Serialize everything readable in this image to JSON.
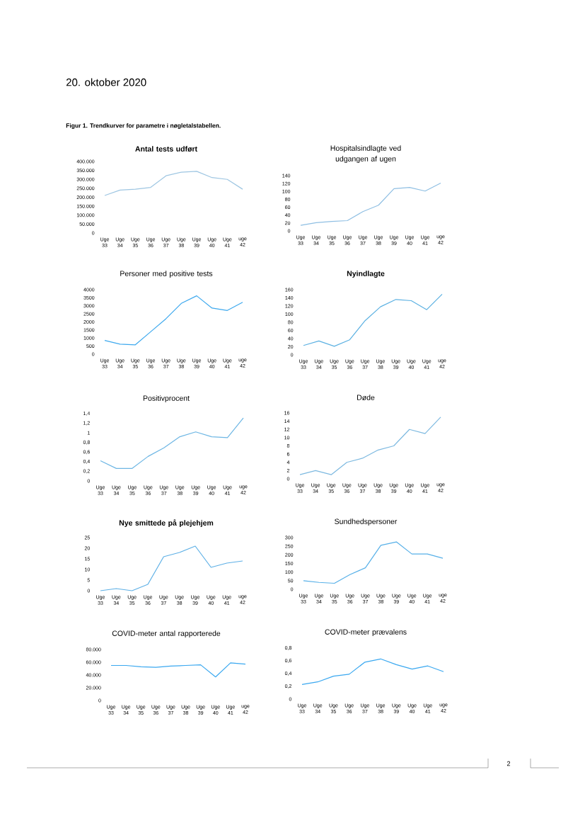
{
  "chart_data": [
    {
      "type": "other",
      "title": "Figur 1. Trendkurver for parametre i nøgletalstabellen.",
      "annotations": [
        "20. oktober 2020",
        "2"
      ]
    },
    {
      "type": "line",
      "title": "Antal tests udført",
      "categories": [
        "Uge 33",
        "Uge 34",
        "Uge 35",
        "Uge 36",
        "Uge 37",
        "Uge 38",
        "Uge 39",
        "Uge 40",
        "Uge 41",
        "uge 42"
      ],
      "values": [
        210000,
        240000,
        245000,
        255000,
        320000,
        340000,
        345000,
        310000,
        300000,
        245000
      ],
      "color": "#9ec6e2",
      "ylim": [
        0,
        400000
      ],
      "yticks": [
        0,
        {
          "value": 50000,
          "label": "50.000"
        },
        {
          "value": 100000,
          "label": "100.000"
        },
        {
          "value": 150000,
          "label": "150.000"
        },
        {
          "value": 200000,
          "label": "200.000"
        },
        {
          "value": 250000,
          "label": "250.000"
        },
        {
          "value": 300000,
          "label": "300.000"
        },
        {
          "value": 350000,
          "label": "350.000"
        },
        {
          "value": 400000,
          "label": "400.000"
        }
      ]
    },
    {
      "type": "line",
      "title": "Hospitalsindlagte ved udgangen af ugen",
      "categories": [
        "Uge 33",
        "Uge 34",
        "Uge 35",
        "Uge 36",
        "Uge 37",
        "Uge 38",
        "Uge 39",
        "Uge 40",
        "Uge 41",
        "uge 42"
      ],
      "values": [
        14,
        21,
        24,
        26,
        49,
        65,
        107,
        110,
        101,
        121
      ],
      "color": "#8fbfe3",
      "ylim": [
        0,
        140
      ],
      "yticks": [
        0,
        20,
        40,
        60,
        80,
        100,
        120,
        140
      ]
    },
    {
      "type": "line",
      "title": "Personer med positive tests",
      "categories": [
        "Uge 33",
        "Uge 34",
        "Uge 35",
        "Uge 36",
        "Uge 37",
        "Uge 38",
        "Uge 39",
        "Uge 40",
        "Uge 41",
        "uge 42"
      ],
      "values": [
        850,
        620,
        580,
        1390,
        2200,
        3150,
        3620,
        2860,
        2710,
        3220
      ],
      "color": "#3ea9ee",
      "ylim": [
        0,
        4000
      ],
      "yticks": [
        0,
        500,
        1000,
        1500,
        2000,
        2500,
        3000,
        3500,
        4000
      ]
    },
    {
      "type": "line",
      "title": "Nyindlagte",
      "categories": [
        "Uge 33",
        "Uge 34",
        "Uge 35",
        "Uge 36",
        "Uge 37",
        "Uge 38",
        "Uge 39",
        "Uge 40",
        "Uge 41",
        "uge 42"
      ],
      "values": [
        23,
        34,
        21,
        37,
        84,
        118,
        136,
        133,
        111,
        149
      ],
      "color": "#5cb1e2",
      "ylim": [
        0,
        160
      ],
      "yticks": [
        0,
        20,
        40,
        60,
        80,
        100,
        120,
        140,
        160
      ]
    },
    {
      "type": "line",
      "title": "Positivprocent",
      "categories": [
        "Uge 33",
        "Uge 34",
        "Uge 35",
        "Uge 36",
        "Uge 37",
        "Uge 38",
        "Uge 39",
        "Uge 40",
        "Uge 41",
        "uge 42"
      ],
      "values": [
        0.42,
        0.26,
        0.26,
        0.51,
        0.69,
        0.92,
        1.02,
        0.92,
        0.9,
        1.31
      ],
      "color": "#6db6e4",
      "ylim": [
        0,
        1.4
      ],
      "yticks": [
        0,
        {
          "value": 0.2,
          "label": "0,2"
        },
        {
          "value": 0.4,
          "label": "0,4"
        },
        {
          "value": 0.6,
          "label": "0,6"
        },
        {
          "value": 0.8,
          "label": "0,8"
        },
        1,
        {
          "value": 1.2,
          "label": "1,2"
        },
        {
          "value": 1.4,
          "label": "1,4"
        }
      ]
    },
    {
      "type": "line",
      "title": "Døde",
      "categories": [
        "Uge 33",
        "Uge 34",
        "Uge 35",
        "Uge 36",
        "Uge 37",
        "Uge 38",
        "Uge 39",
        "Uge 40",
        "Uge 41",
        "uge 42"
      ],
      "values": [
        1,
        2,
        1,
        4,
        5,
        7,
        8,
        12,
        11,
        15
      ],
      "color": "#7db9e0",
      "ylim": [
        0,
        16
      ],
      "yticks": [
        0,
        2,
        4,
        6,
        8,
        10,
        12,
        14,
        16
      ]
    },
    {
      "type": "line",
      "title": "Nye smittede på plejehjem",
      "categories": [
        "Uge 33",
        "Uge 34",
        "Uge 35",
        "Uge 36",
        "Uge 37",
        "Uge 38",
        "Uge 39",
        "Uge 40",
        "Uge 41",
        "uge 42"
      ],
      "values": [
        0,
        1,
        0,
        3,
        16,
        18,
        21,
        11,
        13,
        14
      ],
      "color": "#5eb0e6",
      "ylim": [
        0,
        25
      ],
      "yticks": [
        0,
        5,
        10,
        15,
        20,
        25
      ]
    },
    {
      "type": "line",
      "title": "Sundhedspersoner",
      "categories": [
        "Uge 33",
        "Uge 34",
        "Uge 35",
        "Uge 36",
        "Uge 37",
        "Uge 38",
        "Uge 39",
        "Uge 40",
        "Uge 41",
        "uge 42"
      ],
      "values": [
        50,
        40,
        35,
        85,
        125,
        255,
        275,
        205,
        205,
        180
      ],
      "color": "#57b0e8",
      "ylim": [
        0,
        300
      ],
      "yticks": [
        0,
        50,
        100,
        150,
        200,
        250,
        300
      ]
    },
    {
      "type": "line",
      "title": "COVID-meter antal rapporterede",
      "categories": [
        "Uge 33",
        "Uge 34",
        "Uge 35",
        "Uge 36",
        "Uge 37",
        "Uge 38",
        "Uge 39",
        "Uge 40",
        "Uge 41",
        "uge 42"
      ],
      "values": [
        55000,
        55000,
        53000,
        52000,
        54000,
        55000,
        56000,
        37000,
        59000,
        57000
      ],
      "color": "#3aa8f0",
      "ylim": [
        0,
        80000
      ],
      "yticks": [
        0,
        {
          "value": 20000,
          "label": "20.000"
        },
        {
          "value": 40000,
          "label": "40.000"
        },
        {
          "value": 60000,
          "label": "60.000"
        },
        {
          "value": 80000,
          "label": "80.000"
        }
      ]
    },
    {
      "type": "line",
      "title": "COVID-meter prævalens",
      "categories": [
        "Uge 33",
        "Uge 34",
        "Uge 35",
        "Uge 36",
        "Uge 37",
        "Uge 38",
        "Uge 39",
        "Uge 40",
        "Uge 41",
        "uge 42"
      ],
      "values": [
        0.23,
        0.27,
        0.36,
        0.39,
        0.58,
        0.63,
        0.54,
        0.47,
        0.52,
        0.43
      ],
      "color": "#3aa8f0",
      "ylim": [
        0,
        0.8
      ],
      "yticks": [
        0,
        {
          "value": 0.2,
          "label": "0,2"
        },
        {
          "value": 0.4,
          "label": "0,4"
        },
        {
          "value": 0.6,
          "label": "0,6"
        },
        {
          "value": 0.8,
          "label": "0,8"
        }
      ]
    }
  ]
}
